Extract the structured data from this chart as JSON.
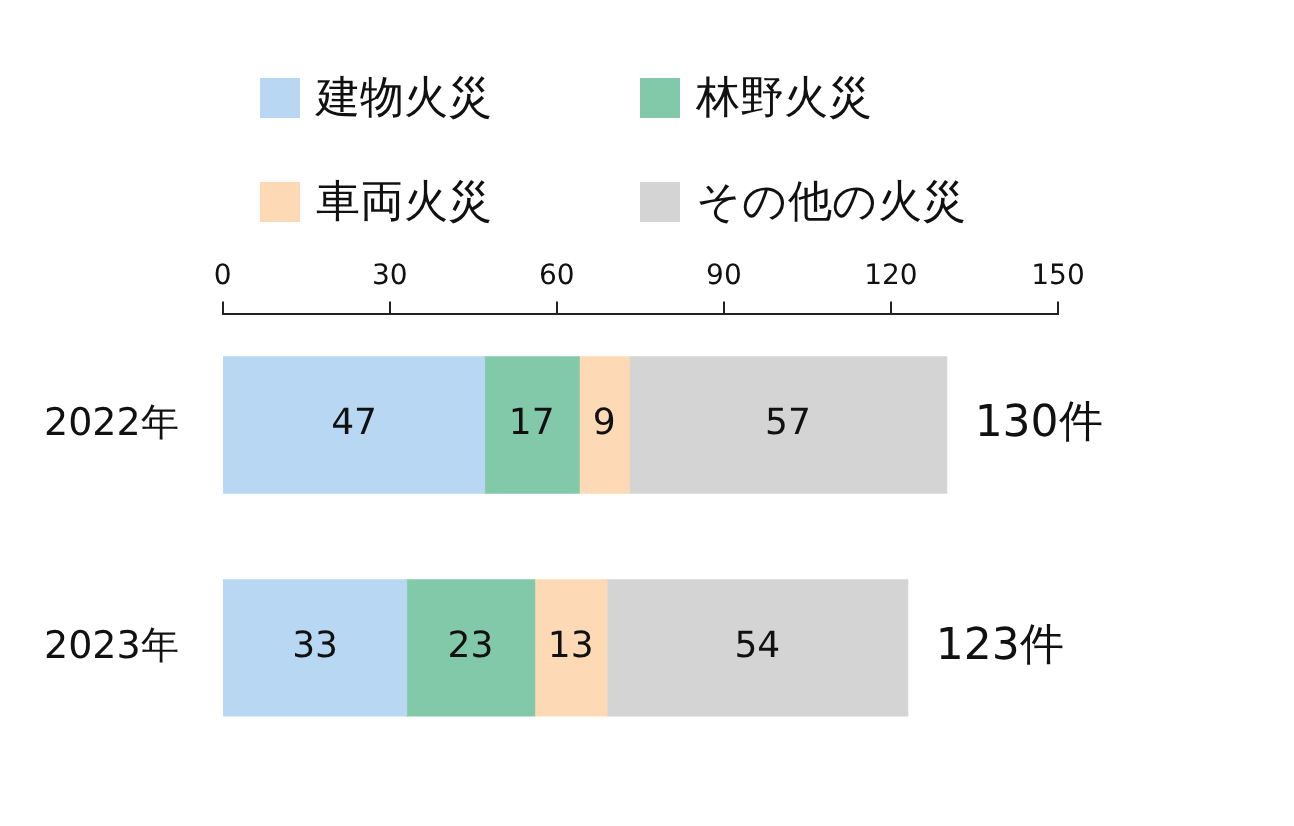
{
  "chart_data": {
    "type": "bar",
    "orientation": "horizontal",
    "stacked": true,
    "categories": [
      "2022年",
      "2023年"
    ],
    "series": [
      {
        "name": "建物火災",
        "color": "#b7d7f2",
        "values": [
          47,
          33
        ]
      },
      {
        "name": "林野火災",
        "color": "#82c9aa",
        "values": [
          17,
          23
        ]
      },
      {
        "name": "車両火災",
        "color": "#fdd9b5",
        "values": [
          9,
          13
        ]
      },
      {
        "name": "その他の火災",
        "color": "#d4d4d4",
        "values": [
          57,
          54
        ]
      }
    ],
    "xlim": [
      0,
      150
    ],
    "xticks": [
      0,
      30,
      60,
      90,
      120,
      150
    ],
    "data_labels": true,
    "totals": [
      "130件",
      "123件"
    ],
    "legend": "top",
    "grid": false
  }
}
